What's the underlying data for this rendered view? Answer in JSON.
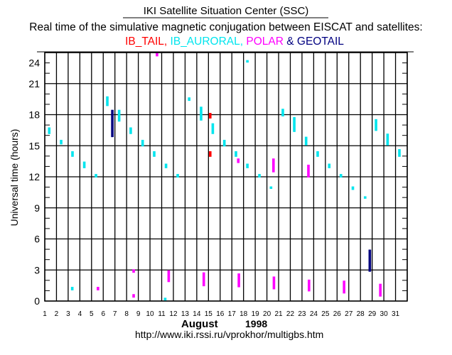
{
  "header": {
    "title": "IKI Satellite Situation Center (SSC)",
    "subtitle": "Real time of the simulative magnetic conjugation between EISCAT and satellites:"
  },
  "chart_data": {
    "type": "scatter",
    "title": "IKI Satellite Situation Center (SSC)",
    "subtitle": "Real time of the simulative magnetic conjugation between EISCAT and satellites:",
    "xlabel": "August",
    "xlabel_year": "1998",
    "ylabel": "Universal time (hours)",
    "footer_url": "http://www.iki.rssi.ru/vprokhor/multigbs.htm",
    "xlim": [
      1,
      32
    ],
    "ylim": [
      0,
      24
    ],
    "x_ticks": [
      "1",
      "2",
      "3",
      "4",
      "5",
      "6",
      "7",
      "8",
      "9",
      "10",
      "11",
      "12",
      "13",
      "14",
      "15",
      "16",
      "17",
      "18",
      "19",
      "20",
      "21",
      "22",
      "23",
      "24",
      "25",
      "26",
      "27",
      "28",
      "29",
      "30",
      "31"
    ],
    "y_ticks": [
      0,
      3,
      6,
      9,
      12,
      15,
      18,
      21,
      24
    ],
    "grid": true,
    "legend": [
      {
        "name": "IB_TAIL",
        "sep": ", ",
        "color": "#ff0000"
      },
      {
        "name": "IB_AURORAL",
        "sep": ", ",
        "color": "#00e5ee"
      },
      {
        "name": "POLAR",
        "sep": " & ",
        "color": "#ff00ff"
      },
      {
        "name": "GEOTAIL",
        "sep": "",
        "color": "#000080"
      }
    ],
    "series": [
      {
        "name": "IB_TAIL",
        "color": "#ff0000",
        "segments": [
          [
            15.15,
            17.7,
            18.1
          ],
          [
            15.15,
            14.0,
            14.4
          ]
        ]
      },
      {
        "name": "IB_AURORAL",
        "color": "#00e5ee",
        "segments": [
          [
            1.38,
            16.2,
            16.7
          ],
          [
            2.4,
            15.2,
            15.5
          ],
          [
            3.37,
            14.0,
            14.4
          ],
          [
            4.38,
            12.9,
            13.4
          ],
          [
            5.38,
            12.0,
            12.2
          ],
          [
            6.35,
            18.9,
            19.7
          ],
          [
            7.36,
            17.4,
            18.4
          ],
          [
            8.35,
            16.2,
            16.7
          ],
          [
            9.37,
            15.0,
            15.5
          ],
          [
            10.36,
            14.0,
            14.4
          ],
          [
            11.37,
            12.9,
            13.2
          ],
          [
            12.37,
            12.0,
            12.2
          ],
          [
            13.35,
            19.4,
            19.6
          ],
          [
            14.37,
            17.5,
            18.7
          ],
          [
            15.37,
            16.2,
            17.1
          ],
          [
            16.36,
            15.0,
            15.5
          ],
          [
            17.35,
            14.0,
            14.4
          ],
          [
            18.33,
            23.1,
            23.2
          ],
          [
            18.33,
            12.9,
            13.2
          ],
          [
            19.36,
            12.0,
            12.2
          ],
          [
            20.35,
            10.9,
            11.0
          ],
          [
            21.36,
            17.9,
            18.5
          ],
          [
            22.34,
            16.4,
            17.7
          ],
          [
            23.35,
            15.1,
            15.8
          ],
          [
            24.34,
            14.0,
            14.4
          ],
          [
            25.33,
            12.9,
            13.2
          ],
          [
            26.33,
            12.0,
            12.2
          ],
          [
            27.35,
            10.8,
            11.0
          ],
          [
            28.4,
            9.95,
            10.05
          ],
          [
            29.33,
            16.5,
            17.5
          ],
          [
            30.32,
            15.1,
            16.1
          ],
          [
            31.33,
            14.0,
            14.6
          ],
          [
            3.35,
            1.1,
            1.3
          ],
          [
            11.3,
            0.05,
            0.25
          ]
        ]
      },
      {
        "name": "POLAR",
        "color": "#ff00ff",
        "segments": [
          [
            10.6,
            23.7,
            23.9
          ],
          [
            17.55,
            13.4,
            13.7
          ],
          [
            20.56,
            12.5,
            13.7
          ],
          [
            23.55,
            12.0,
            13.1
          ],
          [
            5.55,
            1.1,
            1.3
          ],
          [
            8.6,
            2.8,
            3.0
          ],
          [
            8.6,
            0.4,
            0.6
          ],
          [
            11.6,
            1.9,
            2.9
          ],
          [
            14.6,
            1.5,
            2.7
          ],
          [
            17.6,
            1.4,
            2.6
          ],
          [
            20.6,
            1.2,
            2.3
          ],
          [
            23.6,
            1.0,
            2.0
          ],
          [
            26.6,
            0.8,
            1.9
          ],
          [
            29.7,
            0.5,
            1.6
          ]
        ]
      },
      {
        "name": "GEOTAIL",
        "color": "#000080",
        "segments": [
          [
            6.78,
            15.9,
            18.4
          ],
          [
            28.8,
            2.9,
            4.9
          ]
        ]
      }
    ]
  }
}
